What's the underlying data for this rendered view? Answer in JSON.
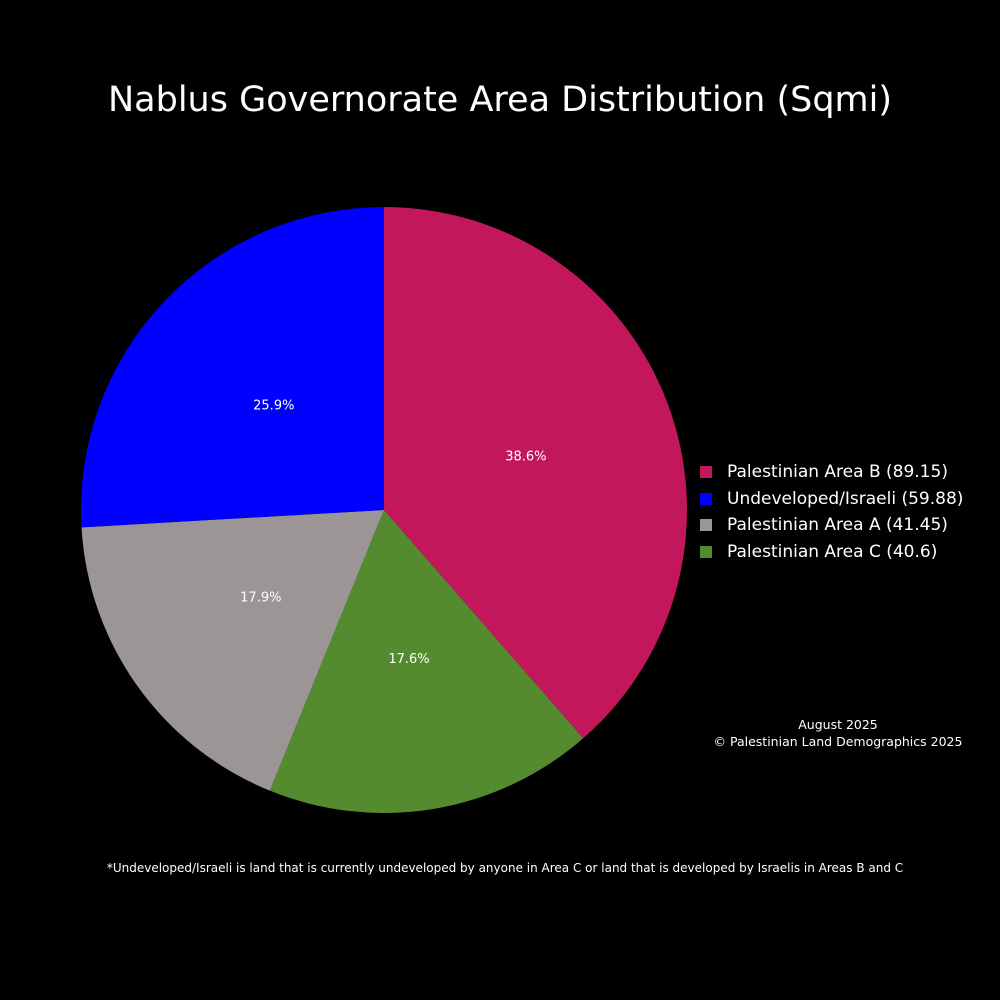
{
  "chart_data": {
    "type": "pie",
    "title": "Nablus Governorate Area Distribution (Sqmi)",
    "series": [
      {
        "name": "Palestinian Area B (89.15)",
        "value": 89.15,
        "percent_label": "38.6%",
        "color": "#c2185b"
      },
      {
        "name": "Undeveloped/Israeli (59.88)",
        "value": 59.88,
        "percent_label": "25.9%",
        "color": "#0000ff"
      },
      {
        "name": "Palestinian Area A (41.45)",
        "value": 41.45,
        "percent_label": "17.9%",
        "color": "#9b9595"
      },
      {
        "name": "Palestinian Area C (40.6)",
        "value": 40.6,
        "percent_label": "17.6%",
        "color": "#558b2f"
      }
    ],
    "slice_order": [
      0,
      3,
      2,
      1
    ],
    "direction": "clockwise",
    "start_angle": "top",
    "legend_placement": "right",
    "background": "#000000"
  },
  "annotations": {
    "date": "August 2025",
    "copyright": "© Palestinian Land Demographics 2025",
    "footnote": "*Undeveloped/Israeli is land that is currently undeveloped by anyone in Area C or land that is developed by Israelis in Areas B and C"
  }
}
